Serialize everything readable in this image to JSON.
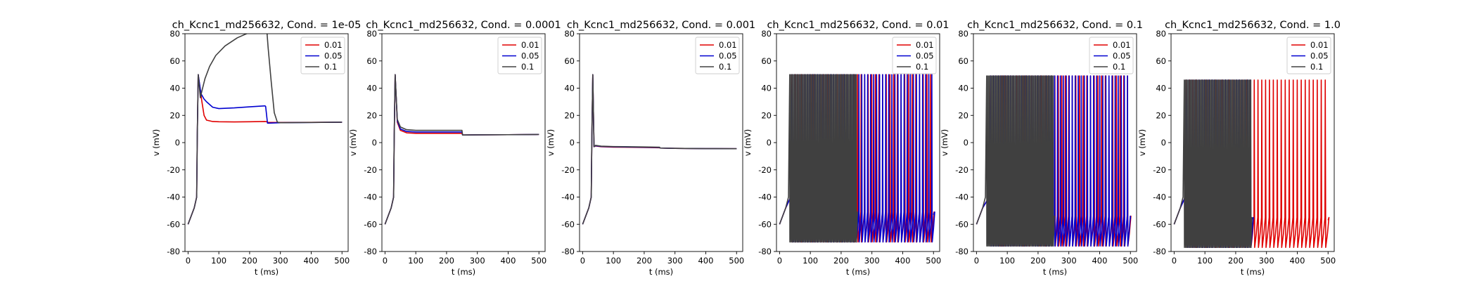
{
  "figure": {
    "xlabel": "t (ms)",
    "ylabel": "v (mV)",
    "xlim": [
      -10,
      520
    ],
    "ylim": [
      -80,
      80
    ],
    "xticks": [
      0,
      100,
      200,
      300,
      400,
      500
    ],
    "yticks": [
      -80,
      -60,
      -40,
      -20,
      0,
      20,
      40,
      60,
      80
    ],
    "legend_position": "top-right",
    "series_names": [
      "0.01",
      "0.05",
      "0.1"
    ],
    "series_colors": [
      "#e00000",
      "#0000d0",
      "#404040"
    ]
  },
  "chart_data": [
    {
      "type": "line",
      "title": "ch_Kcnc1_md256632, Cond. = 1e-05",
      "xlabel": "t (ms)",
      "ylabel": "v (mV)",
      "xlim": [
        -10,
        520
      ],
      "ylim": [
        -80,
        80
      ],
      "grid": false,
      "legend": "top-right",
      "series": [
        {
          "name": "0.01",
          "color": "#e00000",
          "x": [
            0,
            20,
            28,
            30,
            33,
            45,
            52,
            60,
            80,
            100,
            150,
            200,
            250,
            255,
            260,
            300,
            400,
            500
          ],
          "y": [
            -60,
            -48,
            -40,
            5,
            50,
            30,
            20,
            16.5,
            15.5,
            15.3,
            15.2,
            15.3,
            15.5,
            15.4,
            14.8,
            14.8,
            14.9,
            15
          ]
        },
        {
          "name": "0.05",
          "color": "#0000d0",
          "x": [
            0,
            20,
            28,
            30,
            33,
            42,
            52,
            60,
            80,
            100,
            150,
            200,
            250,
            252,
            258,
            300,
            400,
            500
          ],
          "y": [
            -60,
            -48,
            -40,
            5,
            50,
            36,
            32,
            30,
            26,
            25,
            25.5,
            26.3,
            27,
            26.6,
            14.3,
            14.6,
            14.8,
            15
          ]
        },
        {
          "name": "0.1",
          "color": "#404040",
          "x": [
            0,
            20,
            28,
            30,
            33,
            40,
            45,
            55,
            70,
            90,
            120,
            160,
            200,
            240,
            250,
            255,
            260,
            270,
            280,
            290,
            300,
            400,
            500
          ],
          "y": [
            -60,
            -48,
            -40,
            5,
            50,
            33,
            38,
            47,
            56,
            64,
            71,
            77,
            81,
            84,
            85,
            85,
            70,
            45,
            22,
            15,
            14.6,
            14.8,
            15
          ]
        }
      ]
    },
    {
      "type": "line",
      "title": "ch_Kcnc1_md256632, Cond. = 0.0001",
      "xlabel": "t (ms)",
      "ylabel": "v (mV)",
      "xlim": [
        -10,
        520
      ],
      "ylim": [
        -80,
        80
      ],
      "grid": false,
      "legend": "top-right",
      "series": [
        {
          "name": "0.01",
          "color": "#e00000",
          "x": [
            0,
            20,
            28,
            30,
            33,
            40,
            50,
            70,
            100,
            150,
            200,
            250,
            252,
            300,
            400,
            500
          ],
          "y": [
            -60,
            -48,
            -40,
            5,
            50,
            15,
            9,
            7.2,
            6.8,
            6.8,
            6.8,
            6.8,
            5.6,
            5.7,
            5.8,
            6
          ]
        },
        {
          "name": "0.05",
          "color": "#0000d0",
          "x": [
            0,
            20,
            28,
            30,
            33,
            40,
            50,
            70,
            100,
            150,
            200,
            250,
            252,
            300,
            400,
            500
          ],
          "y": [
            -60,
            -48,
            -40,
            5,
            50,
            16,
            10,
            8.2,
            7.8,
            7.8,
            7.8,
            7.8,
            5.6,
            5.7,
            5.8,
            6
          ]
        },
        {
          "name": "0.1",
          "color": "#404040",
          "x": [
            0,
            20,
            28,
            30,
            33,
            40,
            50,
            70,
            100,
            150,
            200,
            250,
            252,
            300,
            400,
            500
          ],
          "y": [
            -60,
            -48,
            -40,
            5,
            50,
            17,
            11.5,
            9.5,
            9,
            9,
            9,
            9,
            5.6,
            5.7,
            5.8,
            6
          ]
        }
      ]
    },
    {
      "type": "line",
      "title": "ch_Kcnc1_md256632, Cond. = 0.001",
      "xlabel": "t (ms)",
      "ylabel": "v (mV)",
      "xlim": [
        -10,
        520
      ],
      "ylim": [
        -80,
        80
      ],
      "grid": false,
      "legend": "top-right",
      "series": [
        {
          "name": "0.01",
          "color": "#e00000",
          "x": [
            0,
            20,
            28,
            30,
            33,
            37,
            42,
            60,
            100,
            200,
            250,
            252,
            300,
            400,
            500
          ],
          "y": [
            -60,
            -48,
            -40,
            5,
            50,
            -3,
            -2.5,
            -3,
            -3.3,
            -3.6,
            -3.8,
            -4,
            -4.2,
            -4.4,
            -4.5
          ]
        },
        {
          "name": "0.05",
          "color": "#0000d0",
          "x": [
            0,
            20,
            28,
            30,
            33,
            37,
            42,
            60,
            100,
            200,
            250,
            252,
            300,
            400,
            500
          ],
          "y": [
            -60,
            -48,
            -40,
            5,
            50,
            -3,
            -2.3,
            -2.8,
            -3.1,
            -3.4,
            -3.6,
            -4,
            -4.2,
            -4.4,
            -4.5
          ]
        },
        {
          "name": "0.1",
          "color": "#404040",
          "x": [
            0,
            20,
            28,
            30,
            33,
            37,
            42,
            60,
            100,
            200,
            250,
            252,
            300,
            400,
            500
          ],
          "y": [
            -60,
            -48,
            -40,
            5,
            50,
            -3,
            -2,
            -2.6,
            -2.9,
            -3.2,
            -3.4,
            -4,
            -4.2,
            -4.4,
            -4.5
          ]
        }
      ]
    },
    {
      "type": "line",
      "title": "ch_Kcnc1_md256632, Cond. = 0.01",
      "xlabel": "t (ms)",
      "ylabel": "v (mV)",
      "xlim": [
        -10,
        520
      ],
      "ylim": [
        -80,
        80
      ],
      "grid": false,
      "legend": "top-right",
      "series": [
        {
          "name": "0.01",
          "color": "#e00000",
          "spike_train": {
            "start": 40,
            "end": 500,
            "v_rest": -60,
            "v_peak": 50,
            "v_min": -73,
            "period_early": 10,
            "period_late": 12,
            "phase": 2
          }
        },
        {
          "name": "0.05",
          "color": "#0000d0",
          "spike_train": {
            "start": 40,
            "end": 500,
            "v_rest": -60,
            "v_peak": 50,
            "v_min": -73,
            "period_early": 8,
            "period_late": 10,
            "phase": 5
          }
        },
        {
          "name": "0.1",
          "color": "#404040",
          "spike_train": {
            "start": 33,
            "end": 250,
            "v_rest": -60,
            "v_peak": 50,
            "v_min": -73,
            "period_early": 4,
            "period_late": 4,
            "phase": 0
          }
        }
      ]
    },
    {
      "type": "line",
      "title": "ch_Kcnc1_md256632, Cond. = 0.1",
      "xlabel": "t (ms)",
      "ylabel": "v (mV)",
      "xlim": [
        -10,
        520
      ],
      "ylim": [
        -80,
        80
      ],
      "grid": false,
      "legend": "top-right",
      "series": [
        {
          "name": "0.01",
          "color": "#e00000",
          "spike_train": {
            "start": 45,
            "end": 500,
            "v_rest": -60,
            "v_peak": 49,
            "v_min": -76,
            "period_early": 9,
            "period_late": 12,
            "phase": 3
          }
        },
        {
          "name": "0.05",
          "color": "#0000d0",
          "spike_train": {
            "start": 45,
            "end": 500,
            "v_rest": -60,
            "v_peak": 49,
            "v_min": -76,
            "period_early": 8,
            "period_late": 10,
            "phase": 6
          }
        },
        {
          "name": "0.1",
          "color": "#404040",
          "spike_train": {
            "start": 33,
            "end": 250,
            "v_rest": -60,
            "v_peak": 49,
            "v_min": -76,
            "period_early": 4,
            "period_late": 4,
            "phase": 0
          }
        }
      ]
    },
    {
      "type": "line",
      "title": "ch_Kcnc1_md256632, Cond. = 1.0",
      "xlabel": "t (ms)",
      "ylabel": "v (mV)",
      "xlim": [
        -10,
        520
      ],
      "ylim": [
        -80,
        80
      ],
      "grid": false,
      "legend": "top-right",
      "series": [
        {
          "name": "0.01",
          "color": "#e00000",
          "spike_train": {
            "start": 40,
            "end": 500,
            "v_rest": -60,
            "v_peak": 46,
            "v_min": -77,
            "period_early": 10,
            "period_late": 13,
            "phase": 2
          }
        },
        {
          "name": "0.05",
          "color": "#0000d0",
          "spike_train": {
            "start": 40,
            "end": 250,
            "v_rest": -60,
            "v_peak": 46,
            "v_min": -77,
            "period_early": 8,
            "period_late": 10,
            "phase": 5
          }
        },
        {
          "name": "0.1",
          "color": "#404040",
          "spike_train": {
            "start": 33,
            "end": 250,
            "v_rest": -60,
            "v_peak": 46,
            "v_min": -77,
            "period_early": 4,
            "period_late": 4,
            "phase": 0
          }
        }
      ]
    }
  ]
}
